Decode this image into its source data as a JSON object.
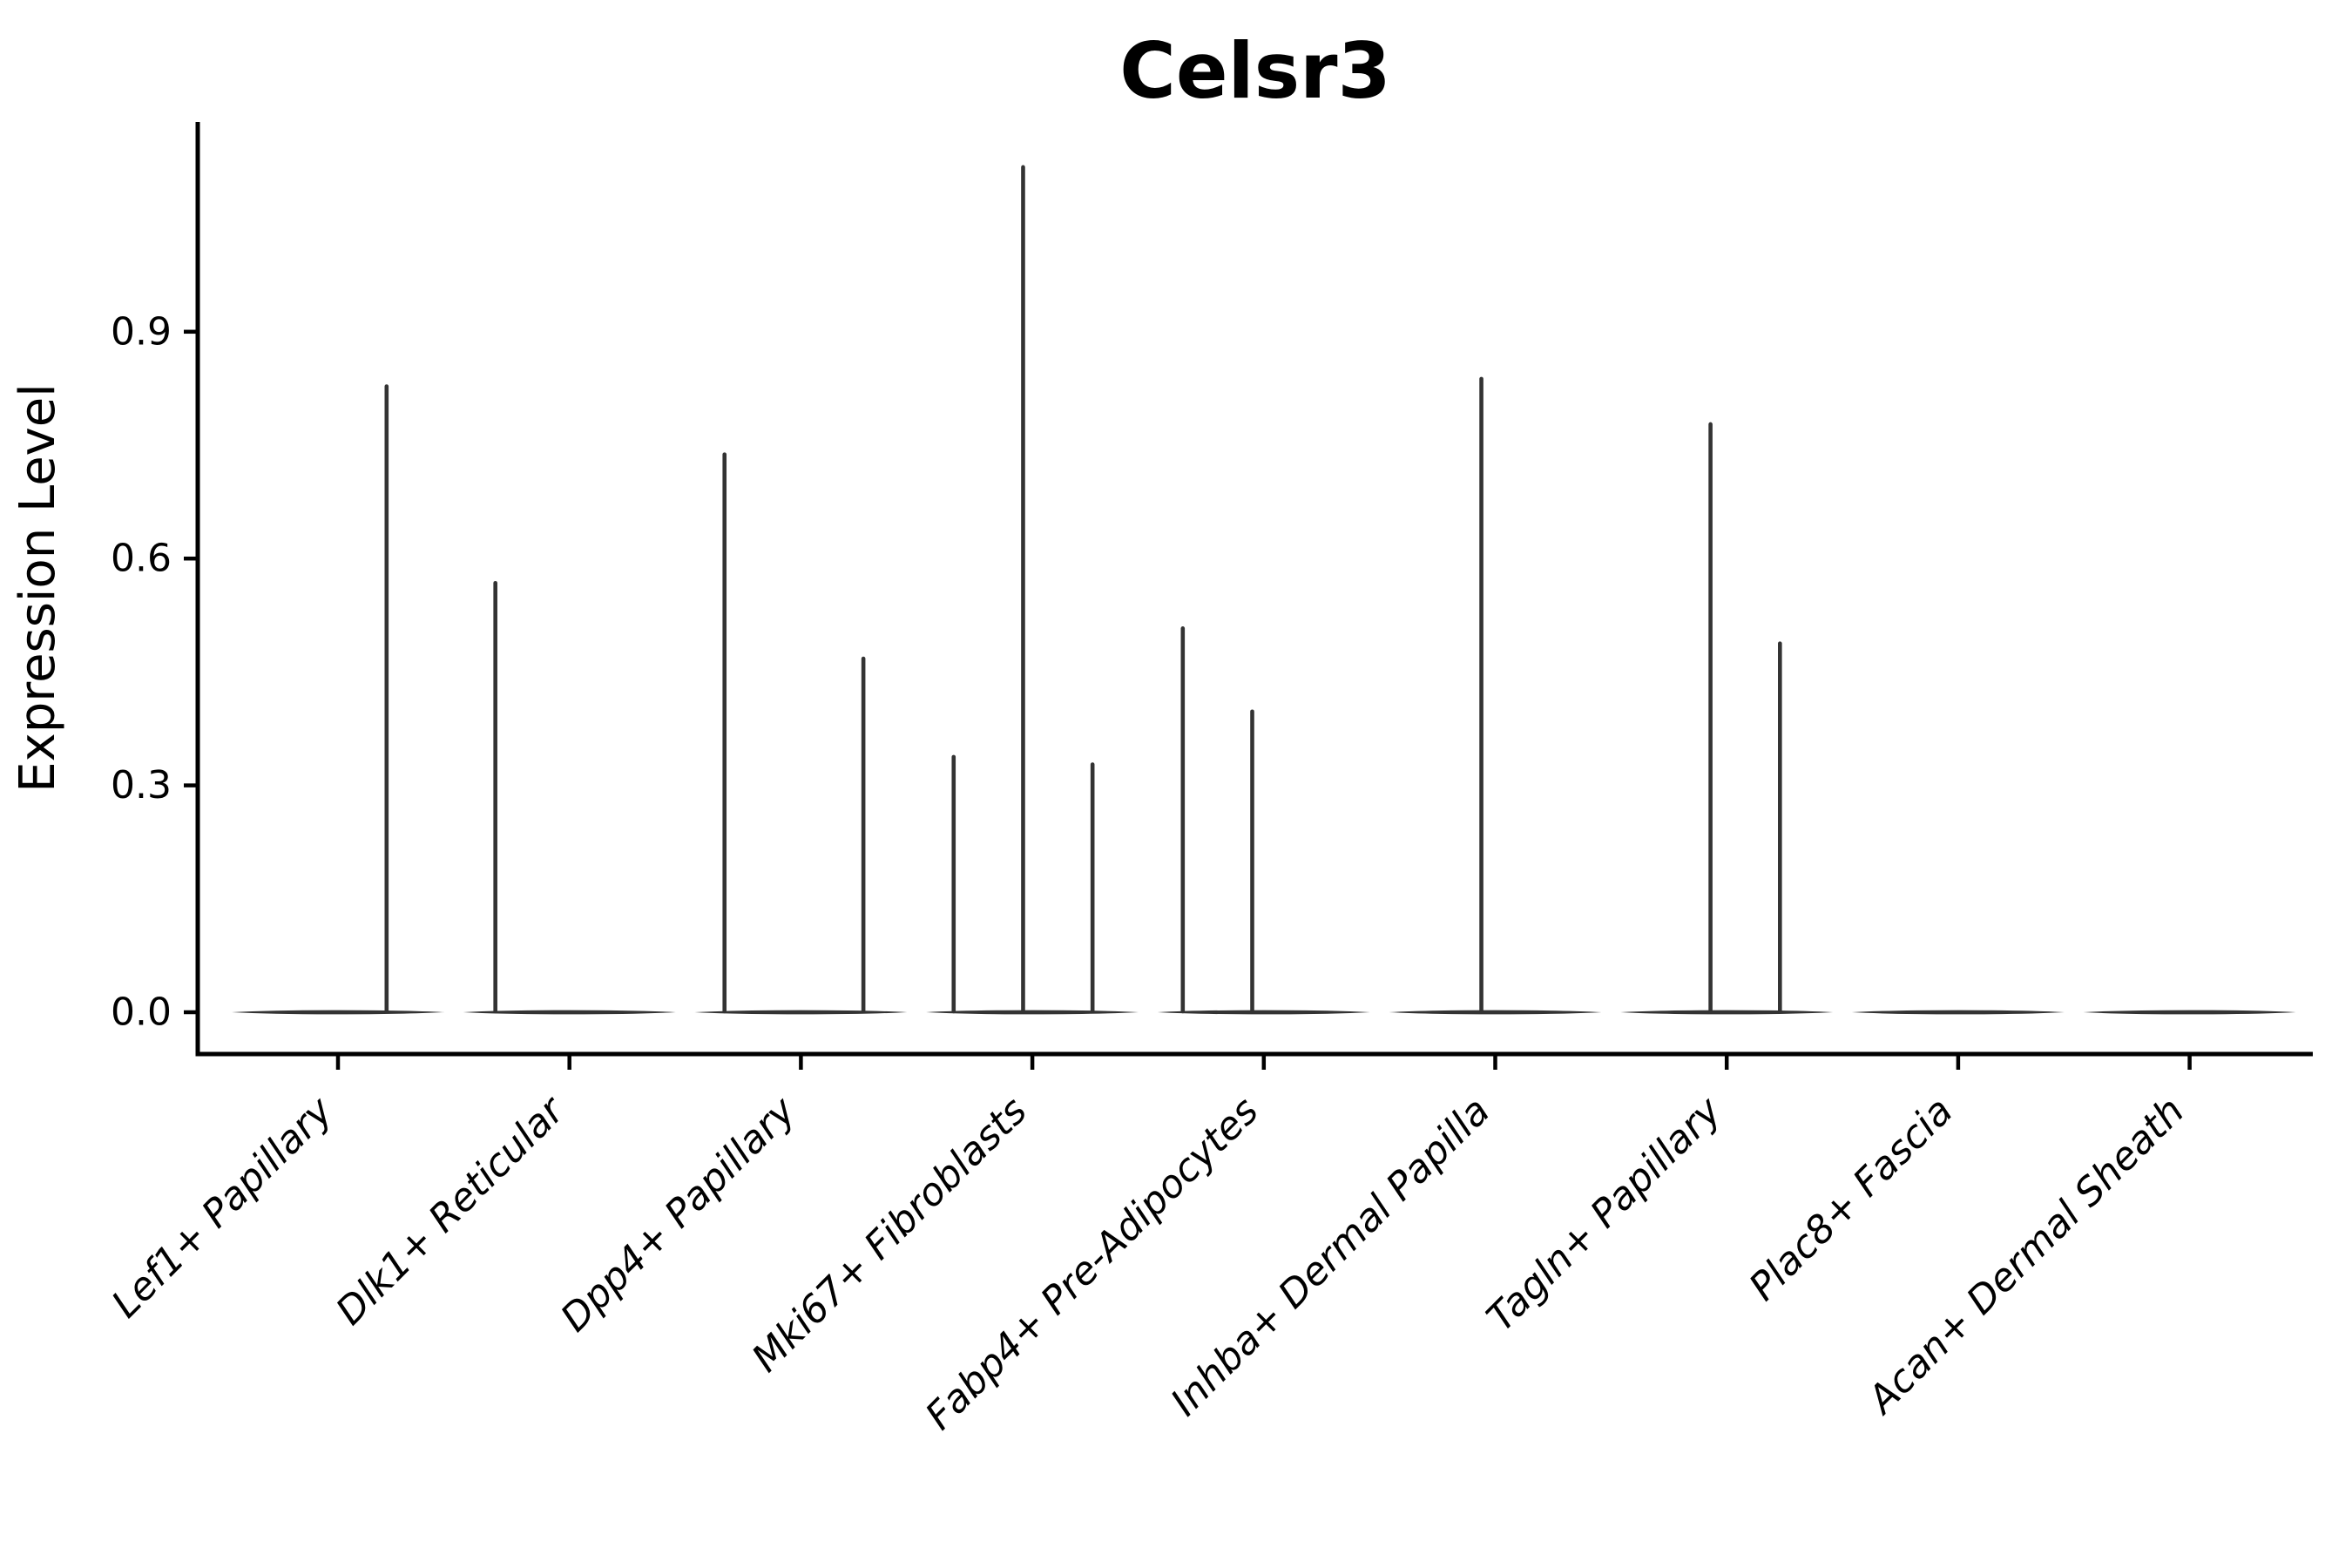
{
  "chart_data": {
    "type": "violin",
    "title": "Celsr3",
    "ylabel": "Expression Level",
    "xlabel": "",
    "categories": [
      "Lef1+ Papillary",
      "Dlk1+ Reticular",
      "Dpp4+ Papillary",
      "Mki67+ Fibroblasts",
      "Fabp4+ Pre-Adipocytes",
      "Inhba+ Dermal Papilla",
      "Tagln+ Papillary",
      "Plac8+ Fascia",
      "Acan+ Dermal Sheath"
    ],
    "ytick_labels": [
      "0.0",
      "0.3",
      "0.6",
      "0.9"
    ],
    "ytick_values": [
      0,
      0.3,
      0.6,
      0.9
    ],
    "ylim": [
      -0.055,
      1.178
    ],
    "grid": false,
    "legend": "none",
    "violin_style": "flat density mass at expression 0 with thin vertical spikes reaching each cell's max expression",
    "violins": [
      {
        "category": "Lef1+ Papillary",
        "baseline_value": 0,
        "spikes": [
          {
            "offset": 0.21,
            "value": 0.83
          }
        ]
      },
      {
        "category": "Dlk1+ Reticular",
        "baseline_value": 0,
        "spikes": [
          {
            "offset": -0.32,
            "value": 0.57
          }
        ]
      },
      {
        "category": "Dpp4+ Papillary",
        "baseline_value": 0,
        "spikes": [
          {
            "offset": -0.33,
            "value": 0.74
          },
          {
            "offset": 0.27,
            "value": 0.47
          }
        ]
      },
      {
        "category": "Mki67+ Fibroblasts",
        "baseline_value": 0,
        "spikes": [
          {
            "offset": -0.34,
            "value": 0.34
          },
          {
            "offset": -0.04,
            "value": 1.12
          },
          {
            "offset": 0.26,
            "value": 0.33
          }
        ]
      },
      {
        "category": "Fabp4+ Pre-Adipocytes",
        "baseline_value": 0,
        "spikes": [
          {
            "offset": -0.35,
            "value": 0.51
          },
          {
            "offset": -0.05,
            "value": 0.4
          }
        ]
      },
      {
        "category": "Inhba+ Dermal Papilla",
        "baseline_value": 0,
        "spikes": [
          {
            "offset": -0.06,
            "value": 0.84
          }
        ]
      },
      {
        "category": "Tagln+ Papillary",
        "baseline_value": 0,
        "spikes": [
          {
            "offset": -0.07,
            "value": 0.78
          },
          {
            "offset": 0.23,
            "value": 0.49
          }
        ]
      },
      {
        "category": "Plac8+ Fascia",
        "baseline_value": 0,
        "spikes": []
      },
      {
        "category": "Acan+ Dermal Sheath",
        "baseline_value": 0,
        "spikes": []
      }
    ],
    "colors": {
      "violin": "#333333",
      "axis": "#000000",
      "text": "#000000",
      "background": "#ffffff"
    }
  }
}
